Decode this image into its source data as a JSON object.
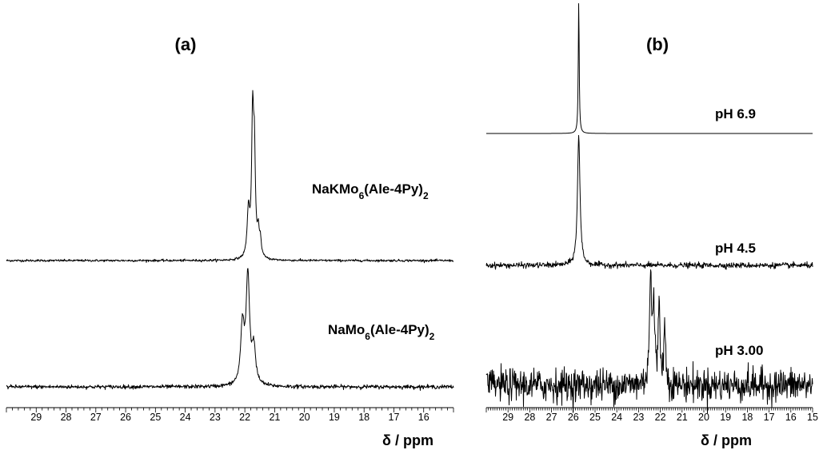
{
  "chart_data": [
    {
      "type": "line",
      "panel_label": "(a)",
      "xlabel": "δ / ppm",
      "xlim": [
        30,
        15
      ],
      "x_reversed": true,
      "x_ticks": [
        29,
        28,
        27,
        26,
        25,
        24,
        23,
        22,
        21,
        20,
        19,
        18,
        17,
        16
      ],
      "series": [
        {
          "name": "NaKMo6(Ale-4Py)2",
          "label_main": "NaKMo",
          "label_sub1": "6",
          "label_mid": "(Ale-4Py)",
          "label_sub2": "2",
          "peaks": [
            {
              "ppm": 21.88,
              "height": 0.35,
              "width": 0.05
            },
            {
              "ppm": 21.74,
              "height": 1.0,
              "width": 0.04
            },
            {
              "ppm": 21.68,
              "height": 0.72,
              "width": 0.04
            },
            {
              "ppm": 21.55,
              "height": 0.17,
              "width": 0.04
            },
            {
              "ppm": 21.48,
              "height": 0.12,
              "width": 0.04
            }
          ],
          "noise": 0.012
        },
        {
          "name": "NaMo6(Ale-4Py)2",
          "label_main": "NaMo",
          "label_sub1": "6",
          "label_mid": "(Ale-4Py)",
          "label_sub2": "2",
          "peaks": [
            {
              "ppm": 22.08,
              "height": 0.53,
              "width": 0.07
            },
            {
              "ppm": 21.9,
              "height": 1.0,
              "width": 0.07
            },
            {
              "ppm": 21.7,
              "height": 0.33,
              "width": 0.07
            }
          ],
          "noise": 0.025
        }
      ]
    },
    {
      "type": "line",
      "panel_label": "(b)",
      "xlabel": "δ / ppm",
      "xlim": [
        30,
        15
      ],
      "x_reversed": true,
      "x_ticks": [
        29,
        28,
        27,
        26,
        25,
        24,
        23,
        22,
        21,
        20,
        19,
        18,
        17,
        16,
        15
      ],
      "series": [
        {
          "name": "pH 6.9",
          "peaks": [
            {
              "ppm": 25.75,
              "height": 1.0,
              "width": 0.025
            }
          ],
          "noise": 0.0
        },
        {
          "name": "pH 4.5",
          "peaks": [
            {
              "ppm": 25.75,
              "height": 1.0,
              "width": 0.07
            }
          ],
          "noise": 0.03
        },
        {
          "name": "pH 3.00",
          "peaks": [
            {
              "ppm": 22.45,
              "height": 1.0,
              "width": 0.06
            },
            {
              "ppm": 22.3,
              "height": 0.68,
              "width": 0.05
            },
            {
              "ppm": 22.05,
              "height": 0.75,
              "width": 0.05
            },
            {
              "ppm": 21.8,
              "height": 0.52,
              "width": 0.05
            }
          ],
          "noise": 0.22
        }
      ]
    }
  ]
}
